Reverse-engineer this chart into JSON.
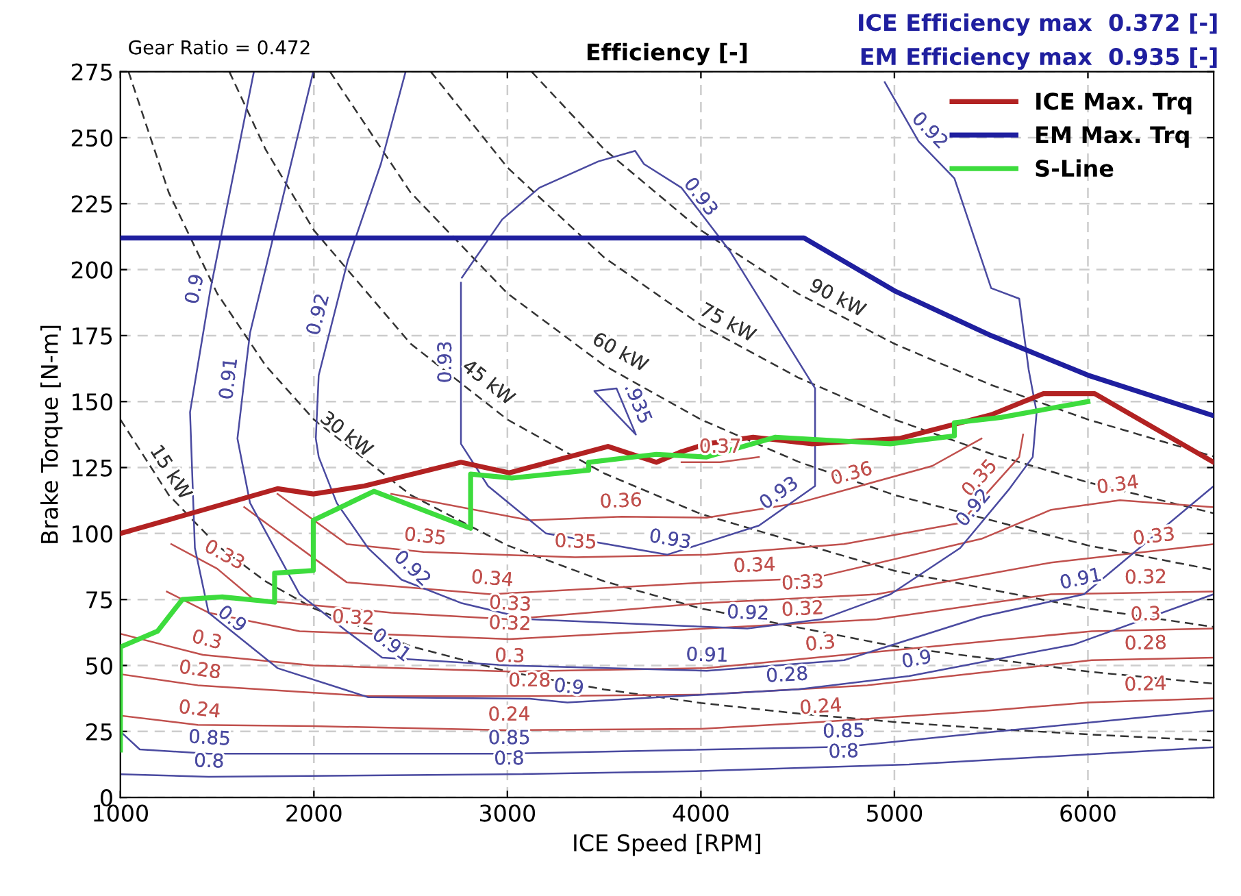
{
  "chart_data": {
    "type": "line",
    "title": "Efficiency [-]",
    "xlabel": "ICE Speed [RPM]",
    "ylabel": "Brake Torque [N-m]",
    "xlim": [
      1000,
      6650
    ],
    "xticks": [
      1000,
      2000,
      3000,
      4000,
      5000,
      6000
    ],
    "ylim": [
      0,
      275
    ],
    "yticks": [
      0,
      25,
      50,
      75,
      100,
      125,
      150,
      175,
      200,
      225,
      250,
      275
    ],
    "grid": true,
    "legend": "top right",
    "line_style": "solid",
    "series": [
      {
        "name": "ICE Max. Trq",
        "color": "#b22222",
        "x": [
          1000,
          1335,
          1812,
          1997,
          2260,
          2760,
          3010,
          3520,
          3770,
          3900,
          4030,
          4270,
          4575,
          5025,
          5500,
          5770,
          6035,
          6650
        ],
        "values": [
          100,
          107,
          117,
          115,
          118,
          127,
          123,
          133,
          127,
          131,
          134,
          136.5,
          134,
          136,
          145,
          153,
          153,
          127
        ]
      },
      {
        "name": "EM Max. Trq",
        "color": "#1f1f9f",
        "x": [
          1000,
          4533,
          5000,
          5500,
          6000,
          6650
        ],
        "values": [
          212,
          212,
          192,
          175,
          160,
          144.6
        ]
      },
      {
        "name": "S-Line",
        "color": "#3ddc3d",
        "x": [
          1000,
          1000,
          1192,
          1320,
          1527,
          1797,
          1797,
          1997,
          1997,
          2310,
          2810,
          2810,
          3023,
          3420,
          3420,
          3770,
          4030,
          4385,
          4980,
          5310,
          5310,
          5550,
          6000
        ],
        "values": [
          18,
          57,
          63,
          75,
          76,
          74,
          85,
          86,
          105,
          116,
          102,
          122.5,
          121,
          124,
          127,
          130,
          129,
          136.5,
          134,
          137,
          142,
          144,
          150
        ]
      },
      {
        "color": "#333333",
        "line_style": "dashed",
        "x": [
          1000,
          1250,
          1500,
          1750,
          2000,
          2500,
          3000,
          3500,
          4000,
          4500,
          5000,
          5500,
          6000,
          6650
        ],
        "values": [
          143.2,
          114.6,
          95.5,
          81.9,
          71.6,
          57.3,
          47.7,
          40.9,
          35.8,
          31.8,
          28.6,
          26.0,
          23.9,
          21.5
        ]
      },
      {
        "color": "#333333",
        "line_style": "dashed",
        "x": [
          1042,
          1250,
          1500,
          1750,
          2000,
          2500,
          3000,
          3500,
          4000,
          5000,
          6000,
          6650
        ],
        "values": [
          275,
          229.2,
          191,
          163.7,
          143.2,
          114.6,
          95.5,
          81.9,
          71.6,
          57.3,
          47.7,
          43.1
        ]
      },
      {
        "color": "#333333",
        "line_style": "dashed",
        "x": [
          1563,
          1750,
          2000,
          2500,
          3000,
          3500,
          4000,
          5000,
          6000,
          6650
        ],
        "values": [
          275,
          245.6,
          214.9,
          171.9,
          143.2,
          122.8,
          107.4,
          85.9,
          71.6,
          64.6
        ]
      },
      {
        "color": "#333333",
        "line_style": "dashed",
        "x": [
          2083,
          2500,
          3000,
          3500,
          4000,
          4500,
          5000,
          6000,
          6650
        ],
        "values": [
          275,
          229.2,
          191,
          163.7,
          143.2,
          127.3,
          114.6,
          95.5,
          86.2
        ]
      },
      {
        "color": "#333333",
        "line_style": "dashed",
        "x": [
          2604,
          3000,
          3500,
          4000,
          4500,
          5000,
          5500,
          6000,
          6650
        ],
        "values": [
          275,
          238.7,
          204.6,
          179,
          159.2,
          143.2,
          130.2,
          119.4,
          107.7
        ]
      },
      {
        "color": "#333333",
        "line_style": "dashed",
        "x": [
          3125,
          3500,
          4000,
          4500,
          5000,
          5500,
          6000,
          6650
        ],
        "values": [
          275,
          245.6,
          214.9,
          191,
          171.9,
          156.3,
          143.2,
          129.2
        ]
      },
      {
        "color": "#c0504d",
        "x": [
          1000,
          1400,
          2000,
          3000,
          4000,
          4600,
          5500,
          6000,
          6650
        ],
        "values": [
          31,
          27.5,
          27,
          25.5,
          26,
          28.5,
          33,
          36,
          37.5
        ]
      },
      {
        "color": "#c0504d",
        "x": [
          1000,
          1400,
          2280,
          3115,
          4030,
          4860,
          6020,
          6650
        ],
        "values": [
          46.7,
          42.5,
          38.4,
          38.4,
          39,
          42.5,
          52,
          53
        ]
      },
      {
        "color": "#c0504d",
        "x": [
          1000,
          1427,
          1997,
          3010,
          4030,
          4740,
          6020,
          6650
        ],
        "values": [
          62,
          54,
          50,
          47.7,
          49,
          54,
          63,
          64
        ]
      },
      {
        "color": "#c0504d",
        "x": [
          1240,
          1456,
          1926,
          3010,
          4030,
          4910,
          5810,
          6650
        ],
        "values": [
          78,
          70,
          63,
          60,
          64,
          67.5,
          77,
          78
        ]
      },
      {
        "color": "#c0504d",
        "x": [
          1263,
          1500,
          1690,
          2400,
          3010,
          4030,
          4910,
          5810,
          6650
        ],
        "values": [
          96,
          86.7,
          75,
          70,
          67.5,
          73.7,
          77,
          89,
          96
        ]
      },
      {
        "color": "#c0504d",
        "x": [
          1640,
          2170,
          2915,
          4030,
          4575,
          5450,
          5810,
          6165,
          6650
        ],
        "values": [
          110,
          81.5,
          77,
          81.5,
          83,
          98,
          109,
          112.6,
          110
        ]
      },
      {
        "color": "#c0504d",
        "x": [
          1812,
          2170,
          2567,
          3350,
          4030,
          4740,
          5340,
          5645,
          5665
        ],
        "values": [
          115,
          96,
          93,
          91,
          92,
          96,
          104,
          129,
          137.5
        ]
      },
      {
        "color": "#c0504d",
        "x": [
          2400,
          3115,
          3590,
          4030,
          4505,
          5195,
          5450
        ],
        "values": [
          115,
          105,
          106.4,
          106,
          111.6,
          125.6,
          136
        ]
      },
      {
        "color": "#c0504d",
        "x": [
          3900,
          4100,
          4300
        ],
        "values": [
          127,
          127,
          129
        ]
      },
      {
        "color": "#4a4aa0",
        "x": [
          1000,
          1456,
          3010,
          4000,
          5075,
          6650
        ],
        "values": [
          8.8,
          7.8,
          8.8,
          10,
          12.5,
          19
        ]
      },
      {
        "color": "#4a4aa0",
        "x": [
          1000,
          1100,
          1456,
          3010,
          4740,
          5450,
          6650
        ],
        "values": [
          25,
          18.2,
          16.6,
          16.6,
          19.2,
          24.4,
          33
        ]
      },
      {
        "color": "#4a4aa0",
        "x": [
          1690,
          1463,
          1360,
          1385,
          1456,
          1812,
          2280,
          3115,
          3310,
          4505,
          5075,
          5930,
          6650
        ],
        "values": [
          275,
          191.5,
          146,
          94.5,
          70,
          49,
          38,
          37.4,
          36,
          41,
          46,
          58,
          77
        ]
      },
      {
        "color": "#4a4aa0",
        "x": [
          1997,
          1670,
          1640,
          1605,
          1670,
          1926,
          2170,
          2353,
          3010,
          4030,
          4740,
          5450,
          5980,
          6650
        ],
        "values": [
          275,
          176,
          158,
          136,
          111.6,
          77,
          63,
          53,
          50,
          48,
          52,
          68.5,
          77,
          118
        ]
      },
      {
        "color": "#4a4aa0",
        "x": [
          2474,
          2346,
          2175,
          2025,
          2010,
          2025,
          2118,
          2280,
          2453,
          2760,
          3115,
          3913,
          4240,
          4625,
          4980,
          5340,
          5595,
          5715,
          5735,
          5694,
          5645,
          5500,
          5310,
          5125,
          4950
        ],
        "values": [
          275,
          240,
          203.4,
          160,
          136,
          129,
          111.6,
          94.5,
          82.5,
          73.7,
          67.5,
          65,
          64,
          67.5,
          77,
          94.5,
          117,
          129,
          146,
          162,
          189,
          193,
          234.6,
          248.6,
          271
        ]
      },
      {
        "color": "#4a4aa0",
        "x": [
          2760,
          2760,
          2900,
          3200,
          3827,
          4300,
          4590,
          4590,
          4150,
          3900,
          3706,
          3660,
          3470,
          3165,
          2973,
          2765
        ],
        "values": [
          195,
          134,
          118,
          100,
          92,
          103,
          118,
          155,
          207,
          231,
          240,
          245,
          241,
          231,
          219,
          197
        ]
      },
      {
        "color": "#4a4aa0",
        "x": [
          3450,
          3564,
          3664,
          3455
        ],
        "values": [
          154,
          155,
          137.5,
          153.5
        ]
      }
    ],
    "annotations": [
      "Gear Ratio = 0.472",
      "ICE Efficiency max  0.372 [-]",
      "EM Efficiency max  0.935 [-]",
      {
        "text": "15 kW",
        "x": 1192,
        "y": 120
      },
      {
        "text": "30 kW",
        "x": 2118,
        "y": 133
      },
      {
        "text": "45 kW",
        "x": 2852,
        "y": 152.6
      },
      {
        "text": "60 kW",
        "x": 3543,
        "y": 163.5
      },
      {
        "text": "75 kW",
        "x": 4100,
        "y": 174.7
      },
      {
        "text": "90 kW",
        "x": 4668,
        "y": 184
      },
      {
        "text": "0.24",
        "x": 1400,
        "y": 27.5
      },
      {
        "text": "0.24",
        "x": 3010,
        "y": 25.5
      },
      {
        "text": "0.24",
        "x": 4625,
        "y": 28.5
      },
      {
        "text": "0.24",
        "x": 6300,
        "y": 37
      },
      {
        "text": "0.28",
        "x": 1400,
        "y": 42.5
      },
      {
        "text": "0.28",
        "x": 3115,
        "y": 38.4
      },
      {
        "text": "0.28",
        "x": 4450,
        "y": 40.5
      },
      {
        "text": "0.28",
        "x": 6300,
        "y": 52.5
      },
      {
        "text": "0.3",
        "x": 1427,
        "y": 54
      },
      {
        "text": "0.3",
        "x": 3010,
        "y": 47.7
      },
      {
        "text": "0.3",
        "x": 4625,
        "y": 52.5
      },
      {
        "text": "0.3",
        "x": 6300,
        "y": 63.5
      },
      {
        "text": "0.32",
        "x": 2200,
        "y": 62.2
      },
      {
        "text": "0.32",
        "x": 3010,
        "y": 60
      },
      {
        "text": "0.32",
        "x": 4530,
        "y": 65.5
      },
      {
        "text": "0.32",
        "x": 6300,
        "y": 77.5
      },
      {
        "text": "0.33",
        "x": 1500,
        "y": 86.7
      },
      {
        "text": "0.33",
        "x": 3010,
        "y": 67.5
      },
      {
        "text": "0.33",
        "x": 4530,
        "y": 75.5
      },
      {
        "text": "0.33",
        "x": 6350,
        "y": 93
      },
      {
        "text": "0.34",
        "x": 2915,
        "y": 77
      },
      {
        "text": "0.34",
        "x": 4280,
        "y": 82
      },
      {
        "text": "0.34",
        "x": 6165,
        "y": 112.6
      },
      {
        "text": "0.35",
        "x": 2567,
        "y": 93
      },
      {
        "text": "0.35",
        "x": 3350,
        "y": 91
      },
      {
        "text": "0.35",
        "x": 5500,
        "y": 117.1
      },
      {
        "text": "0.36",
        "x": 3590,
        "y": 106.4
      },
      {
        "text": "0.36",
        "x": 4800,
        "y": 117
      },
      {
        "text": "0.37",
        "x": 4100,
        "y": 127
      },
      {
        "text": "0.8",
        "x": 1456,
        "y": 7.8
      },
      {
        "text": "0.8",
        "x": 3010,
        "y": 8.8
      },
      {
        "text": "0.8",
        "x": 4740,
        "y": 11.5
      },
      {
        "text": "0.85",
        "x": 1456,
        "y": 16.6
      },
      {
        "text": "0.85",
        "x": 3010,
        "y": 16.6
      },
      {
        "text": "0.85",
        "x": 4740,
        "y": 19.2
      },
      {
        "text": "0.9",
        "x": 1463,
        "y": 191.5
      },
      {
        "text": "0.9",
        "x": 1527,
        "y": 63
      },
      {
        "text": "0.9",
        "x": 3310,
        "y": 36
      },
      {
        "text": "0.9",
        "x": 5130,
        "y": 46.5
      },
      {
        "text": "0.91",
        "x": 1640,
        "y": 158
      },
      {
        "text": "0.91",
        "x": 2353,
        "y": 53
      },
      {
        "text": "0.91",
        "x": 4030,
        "y": 48
      },
      {
        "text": "0.91",
        "x": 5980,
        "y": 77
      },
      {
        "text": "0.92",
        "x": 2100,
        "y": 181.6
      },
      {
        "text": "0.92",
        "x": 2453,
        "y": 82.5
      },
      {
        "text": "0.92",
        "x": 4240,
        "y": 64
      },
      {
        "text": "0.92",
        "x": 5470,
        "y": 106
      },
      {
        "text": "0.92",
        "x": 5125,
        "y": 248.6
      },
      {
        "text": "0.93",
        "x": 2760,
        "y": 165
      },
      {
        "text": "0.93",
        "x": 3935,
        "y": 224
      },
      {
        "text": "0.93",
        "x": 3827,
        "y": 92
      },
      {
        "text": "0.93",
        "x": 4450,
        "y": 110.5
      },
      {
        "text": ".935",
        "x": 3600,
        "y": 147
      }
    ]
  }
}
